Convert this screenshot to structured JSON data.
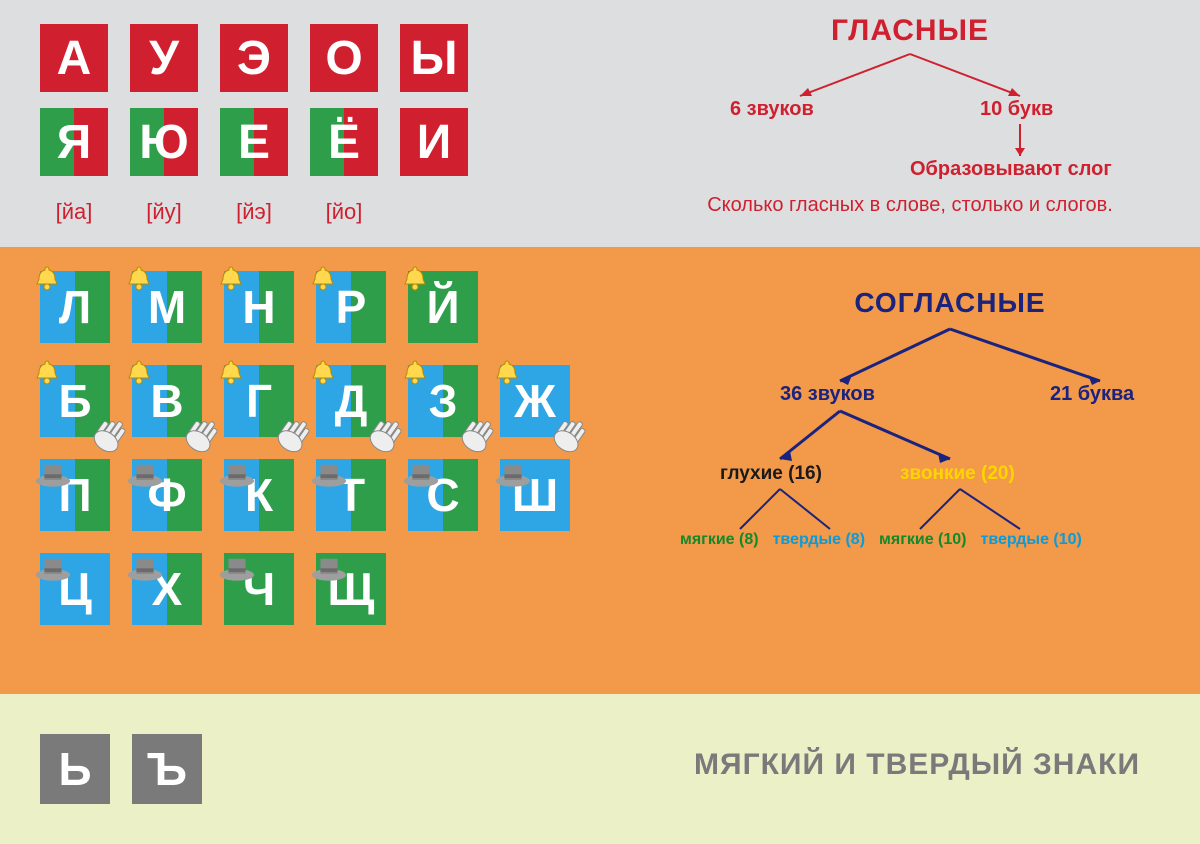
{
  "colors": {
    "red": "#d01f2e",
    "green": "#2e9e4a",
    "blue": "#2ea6e6",
    "orange": "#f2994a",
    "grey_bg": "#dcdee0",
    "pale": "#ecf0c7",
    "grey": "#7a7a7a",
    "navy": "#1a237e",
    "yellow": "#ffd500",
    "teal": "#0a9bd9",
    "dkgreen": "#138a2a"
  },
  "vowels": {
    "title": "ГЛАСНЫЕ",
    "row1": [
      {
        "l": "А",
        "bg": "red"
      },
      {
        "l": "У",
        "bg": "red"
      },
      {
        "l": "Э",
        "bg": "red"
      },
      {
        "l": "О",
        "bg": "red"
      },
      {
        "l": "Ы",
        "bg": "red"
      }
    ],
    "row2": [
      {
        "l": "Я",
        "left": "green",
        "right": "red",
        "sub": "[йа]"
      },
      {
        "l": "Ю",
        "left": "green",
        "right": "red",
        "sub": "[йу]"
      },
      {
        "l": "Е",
        "left": "green",
        "right": "red",
        "sub": "[йэ]"
      },
      {
        "l": "Ё",
        "left": "green",
        "right": "red",
        "sub": "[йо]"
      },
      {
        "l": "И",
        "bg": "red"
      }
    ],
    "tree": {
      "left": "6 звуков",
      "right": "10 букв",
      "child": "Образовывают слог",
      "note": "Сколько гласных в слове, столько и слогов."
    }
  },
  "consonants": {
    "title": "СОГЛАСНЫЕ",
    "rows": [
      [
        {
          "l": "Л",
          "left": "blue",
          "right": "green",
          "icon": "bell"
        },
        {
          "l": "М",
          "left": "blue",
          "right": "green",
          "icon": "bell"
        },
        {
          "l": "Н",
          "left": "blue",
          "right": "green",
          "icon": "bell"
        },
        {
          "l": "Р",
          "left": "blue",
          "right": "green",
          "icon": "bell"
        },
        {
          "l": "Й",
          "bg": "green",
          "icon": "bell"
        }
      ],
      [
        {
          "l": "Б",
          "left": "blue",
          "right": "green",
          "icon": "bell",
          "hand": true
        },
        {
          "l": "В",
          "left": "blue",
          "right": "green",
          "icon": "bell",
          "hand": true
        },
        {
          "l": "Г",
          "left": "blue",
          "right": "green",
          "icon": "bell",
          "hand": true
        },
        {
          "l": "Д",
          "left": "blue",
          "right": "green",
          "icon": "bell",
          "hand": true
        },
        {
          "l": "З",
          "left": "blue",
          "right": "green",
          "icon": "bell",
          "hand": true
        },
        {
          "l": "Ж",
          "bg": "blue",
          "icon": "bell",
          "hand": true
        }
      ],
      [
        {
          "l": "П",
          "left": "blue",
          "right": "green",
          "icon": "hat"
        },
        {
          "l": "Ф",
          "left": "blue",
          "right": "green",
          "icon": "hat"
        },
        {
          "l": "К",
          "left": "blue",
          "right": "green",
          "icon": "hat"
        },
        {
          "l": "Т",
          "left": "blue",
          "right": "green",
          "icon": "hat"
        },
        {
          "l": "С",
          "left": "blue",
          "right": "green",
          "icon": "hat"
        },
        {
          "l": "Ш",
          "bg": "blue",
          "icon": "hat"
        }
      ],
      [
        {
          "l": "Ц",
          "bg": "blue",
          "icon": "hat"
        },
        {
          "l": "Х",
          "left": "blue",
          "right": "green",
          "icon": "hat"
        },
        {
          "l": "Ч",
          "bg": "green",
          "icon": "hat"
        },
        {
          "l": "Щ",
          "bg": "green",
          "icon": "hat"
        }
      ]
    ],
    "tree": {
      "l1_left": "36 звуков",
      "l1_right": "21 буква",
      "l2_left": "глухие (16)",
      "l2_right": "звонкие (20)",
      "leaves": [
        {
          "t": "мягкие (8)",
          "c": "dkgreen"
        },
        {
          "t": "твердые (8)",
          "c": "teal"
        },
        {
          "t": "мягкие (10)",
          "c": "dkgreen"
        },
        {
          "t": "твердые (10)",
          "c": "teal"
        }
      ]
    }
  },
  "signs": {
    "title": "МЯГКИЙ И ТВЕРДЫЙ ЗНАКИ",
    "tiles": [
      {
        "l": "Ь"
      },
      {
        "l": "Ъ"
      }
    ]
  }
}
